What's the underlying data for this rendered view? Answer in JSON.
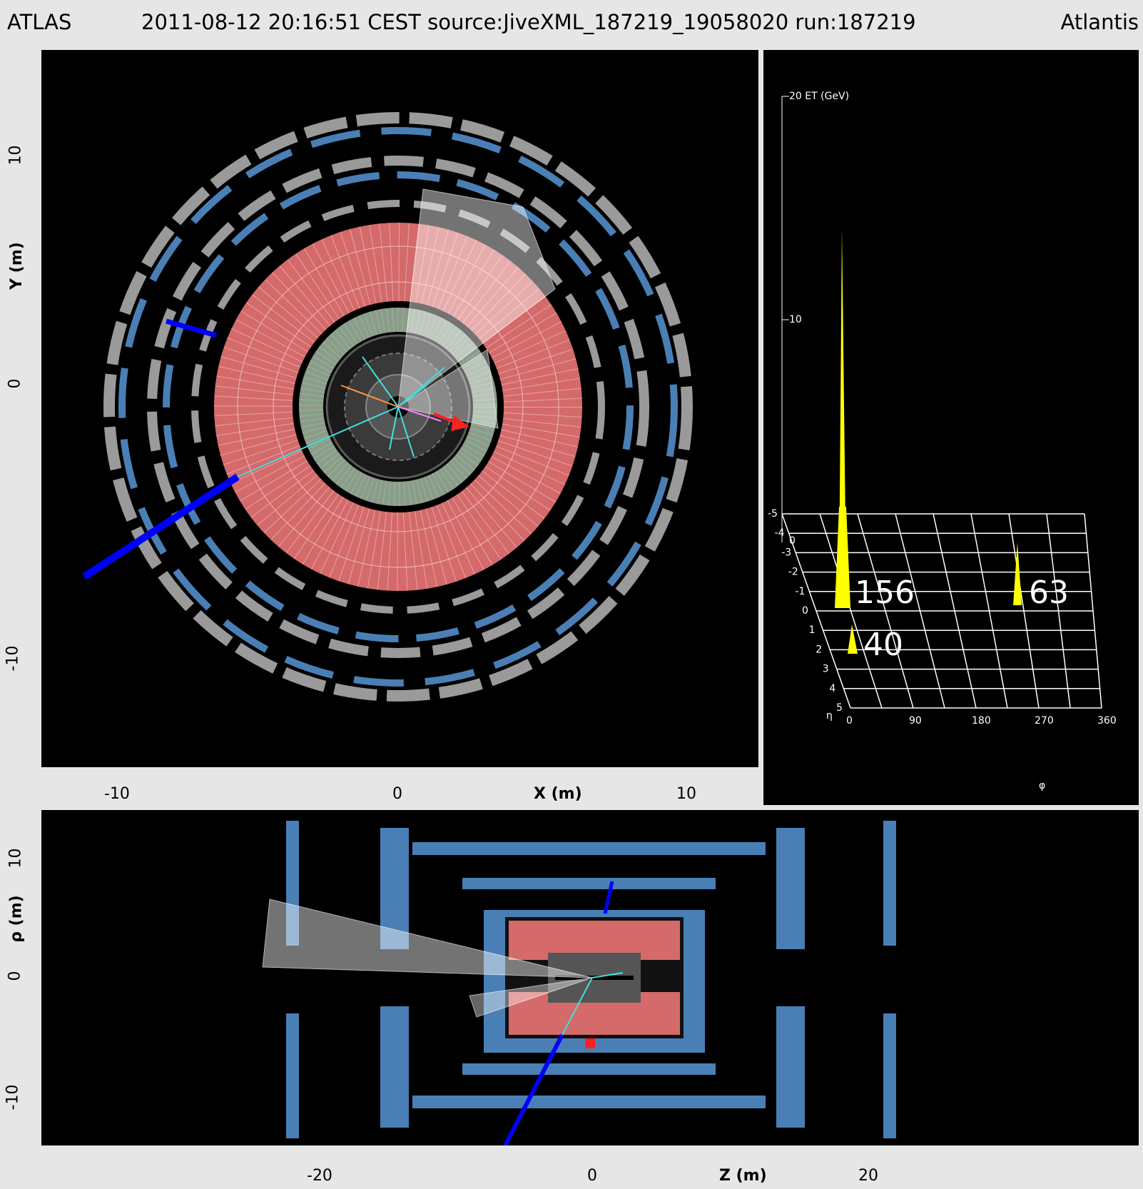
{
  "header": {
    "left": "ATLAS",
    "center": "2011-08-12 20:16:51 CEST source:JiveXML_187219_19058020 run:187219",
    "right": "Atlantis"
  },
  "xy_view": {
    "x_axis_label": "X (m)",
    "y_axis_label": "Y (m)",
    "x_ticks": [
      "-10",
      "0",
      "10"
    ],
    "y_ticks": [
      "10",
      "0",
      "-10"
    ]
  },
  "lego_view": {
    "z_axis_label": "20 ET (GeV)",
    "z_mid": "10",
    "z_zero": "0",
    "eta_label": "η",
    "phi_label": "φ",
    "eta_ticks": [
      "-5",
      "-4",
      "-3",
      "-2",
      "-1",
      "0",
      "1",
      "2",
      "3",
      "4",
      "5"
    ],
    "phi_ticks": [
      "0",
      "90",
      "180",
      "270",
      "360"
    ],
    "et_labels": [
      "156",
      "63",
      "40"
    ],
    "tower_color": "#ffff00"
  },
  "rz_view": {
    "x_axis_label": "Z (m)",
    "y_axis_label": "ρ (m)",
    "x_ticks": [
      "-20",
      "0",
      "20"
    ],
    "y_ticks": [
      "10",
      "0",
      "-10"
    ]
  },
  "colors": {
    "muon_chamber": "#4a7fb5",
    "muon_frame": "#9a9a9a",
    "hadronic_calorimeter": "#d46a6a",
    "em_calorimeter": "#9aa89a",
    "muon_track": "#0000ff",
    "jet_cone": "#ffffff",
    "track": "#40e0e0",
    "missing_et": "#ff2020"
  }
}
